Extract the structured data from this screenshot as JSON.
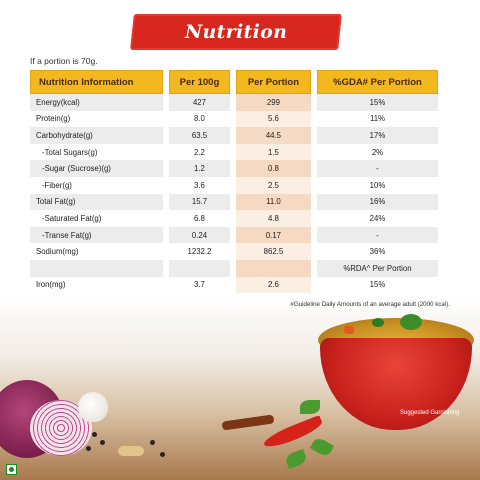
{
  "title": "Nutrition Information",
  "portion_note": "If a portion is 70g.",
  "table": {
    "headers": [
      "Nutrition Information",
      "Per 100g",
      "Per Portion",
      "%GDA# Per Portion"
    ],
    "rows": [
      {
        "label": "Energy(kcal)",
        "per100": "427",
        "portion": "299",
        "gda": "15%",
        "indent": false
      },
      {
        "label": "Protein(g)",
        "per100": "8.0",
        "portion": "5.6",
        "gda": "11%",
        "indent": false
      },
      {
        "label": "Carbohydrate(g)",
        "per100": "63.5",
        "portion": "44.5",
        "gda": "17%",
        "indent": false
      },
      {
        "label": "-Total Sugars(g)",
        "per100": "2.2",
        "portion": "1.5",
        "gda": "2%",
        "indent": true
      },
      {
        "label": "-Sugar (Sucrose)(g)",
        "per100": "1.2",
        "portion": "0.8",
        "gda": "-",
        "indent": true
      },
      {
        "label": "-Fiber(g)",
        "per100": "3.6",
        "portion": "2.5",
        "gda": "10%",
        "indent": true
      },
      {
        "label": "Total Fat(g)",
        "per100": "15.7",
        "portion": "11.0",
        "gda": "16%",
        "indent": false
      },
      {
        "label": "-Saturated Fat(g)",
        "per100": "6.8",
        "portion": "4.8",
        "gda": "24%",
        "indent": true
      },
      {
        "label": "-Transe Fat(g)",
        "per100": "0.24",
        "portion": "0.17",
        "gda": "-",
        "indent": true
      },
      {
        "label": "Sodium(mg)",
        "per100": "1232.2",
        "portion": "862.5",
        "gda": "36%",
        "indent": false
      },
      {
        "label": "",
        "per100": "",
        "portion": "",
        "gda": "%RDA^ Per Portion",
        "indent": false
      },
      {
        "label": "Iron(mg)",
        "per100": "3.7",
        "portion": "2.6",
        "gda": "15%",
        "indent": false
      }
    ]
  },
  "footnote": "#Guideline Daily Amounts of an average adult (2000 kcal).",
  "garnish_label": "Suggested Garnishing",
  "colors": {
    "banner": "#d7261e",
    "header": "#f4b81f",
    "portion_col": "#f6d9c2"
  }
}
